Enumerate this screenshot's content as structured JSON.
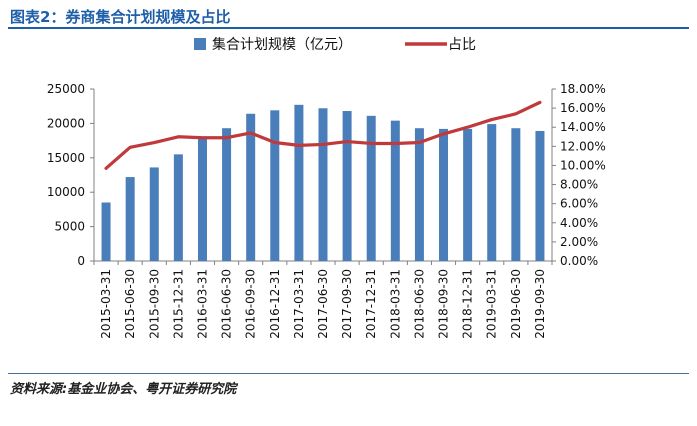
{
  "figure_title": "图表2：券商集合计划规模及占比",
  "source": "资料来源:基金业协会、粤开证券研究院",
  "colors": {
    "bar": "#4a7ebb",
    "line": "#c0393b",
    "title": "#1f5fa8"
  },
  "chart_data": {
    "type": "bar+line",
    "title": "",
    "categories": [
      "2015-03-31",
      "2015-06-30",
      "2015-09-30",
      "2015-12-31",
      "2016-03-31",
      "2016-06-30",
      "2016-09-30",
      "2016-12-31",
      "2017-03-31",
      "2017-06-30",
      "2017-09-30",
      "2017-12-31",
      "2018-03-31",
      "2018-06-30",
      "2018-09-30",
      "2018-12-31",
      "2019-03-31",
      "2019-06-30",
      "2019-09-30"
    ],
    "series": [
      {
        "name": "集合计划规模（亿元）",
        "type": "bar",
        "axis": "left",
        "values": [
          8500,
          12200,
          13600,
          15500,
          17800,
          19300,
          21400,
          21900,
          22700,
          22200,
          21800,
          21100,
          20400,
          19300,
          19200,
          19200,
          19900,
          19300,
          18900
        ]
      },
      {
        "name": "占比",
        "type": "line",
        "axis": "right",
        "values": [
          9.7,
          11.9,
          12.4,
          13.0,
          12.9,
          12.9,
          13.4,
          12.4,
          12.1,
          12.2,
          12.5,
          12.3,
          12.3,
          12.4,
          13.3,
          14.0,
          14.8,
          15.4,
          16.6
        ]
      }
    ],
    "yleft": {
      "lim": [
        0,
        25000
      ],
      "ticks": [
        "0",
        "5000",
        "10000",
        "15000",
        "20000",
        "25000"
      ]
    },
    "yright": {
      "lim": [
        0,
        18
      ],
      "ticks": [
        "0.00%",
        "2.00%",
        "4.00%",
        "6.00%",
        "8.00%",
        "10.00%",
        "12.00%",
        "14.00%",
        "16.00%",
        "18.00%"
      ]
    },
    "legend": {
      "position": "top",
      "bar_label": "集合计划规模（亿元）",
      "line_label": "占比"
    },
    "grid": false
  }
}
